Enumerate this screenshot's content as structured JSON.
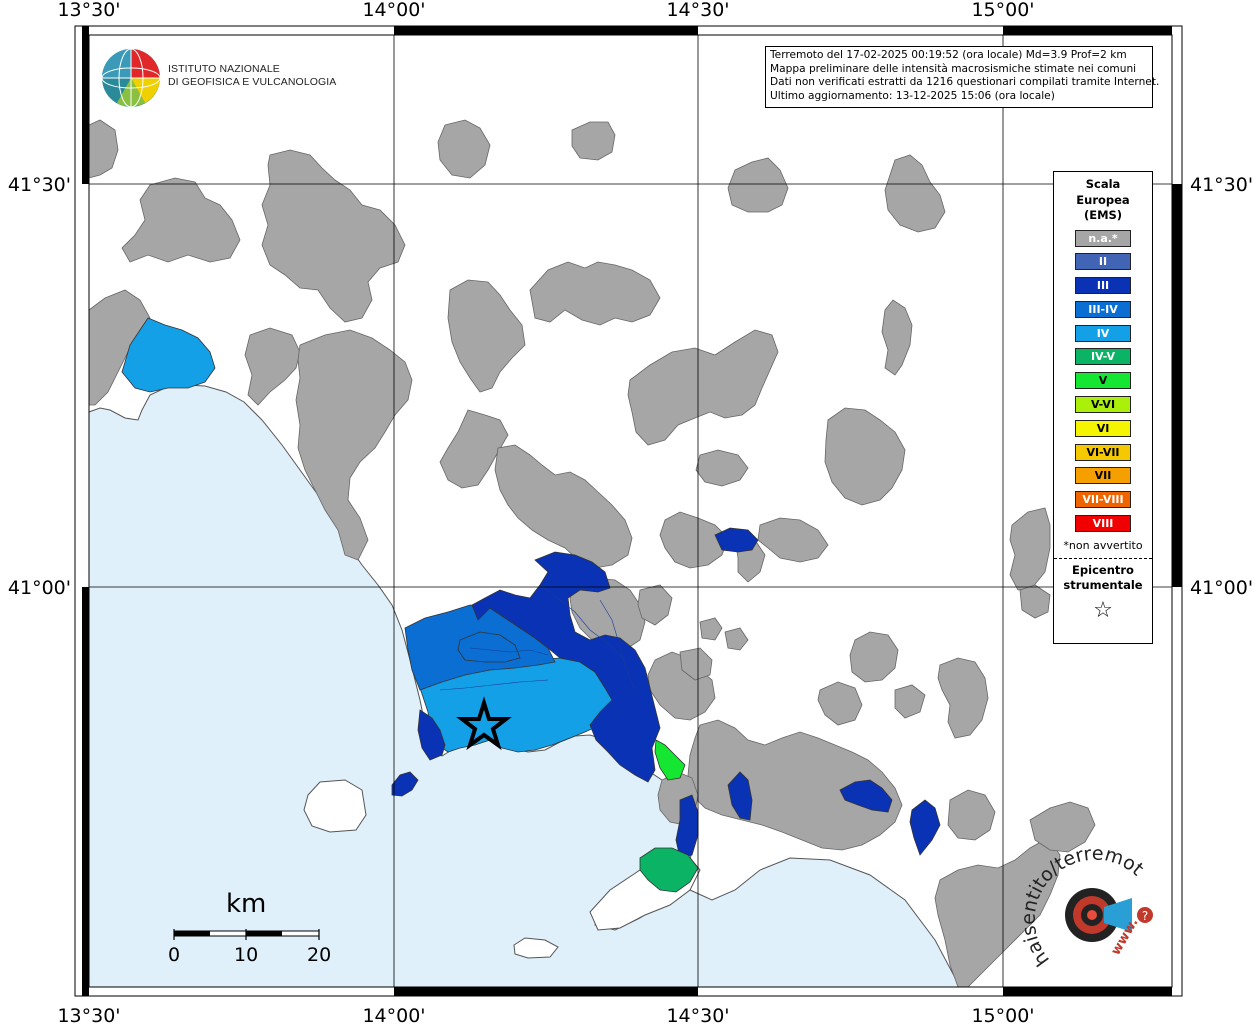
{
  "map": {
    "lon_labels": [
      "13°30'",
      "14°00'",
      "14°30'",
      "15°00'"
    ],
    "lat_labels": [
      "41°30'",
      "41°00'"
    ],
    "sea_color": "#dff0fb",
    "land_na_color": "#a6a6a6"
  },
  "institute": {
    "line1": "ISTITUTO NAZIONALE",
    "line2": "DI GEOFISICA E VULCANOLOGIA"
  },
  "info": {
    "line1": "Terremoto del 17-02-2025 00:19:52 (ora locale) Md=3.9 Prof=2 km",
    "line2": "Mappa preliminare delle intensità macrosismiche stimate nei comuni",
    "line3": "Dati non verificati estratti da 1216 questionari compilati tramite Internet.",
    "line4": "Ultimo aggiornamento: 13-12-2025 15:06 (ora locale)"
  },
  "legend": {
    "title_line1": "Scala",
    "title_line2": "Europea",
    "title_line3": "(EMS)",
    "items": [
      {
        "label": "n.a.*",
        "color": "#a6a6a6"
      },
      {
        "label": "II",
        "color": "#4264b4"
      },
      {
        "label": "III",
        "color": "#0a32b4"
      },
      {
        "label": "III-IV",
        "color": "#0a6ed2"
      },
      {
        "label": "IV",
        "color": "#14a0e6"
      },
      {
        "label": "IV-V",
        "color": "#0ab464"
      },
      {
        "label": "V",
        "color": "#14e632"
      },
      {
        "label": "V-VI",
        "color": "#aaf00a"
      },
      {
        "label": "VI",
        "color": "#f5f500"
      },
      {
        "label": "VI-VII",
        "color": "#f5c800"
      },
      {
        "label": "VII",
        "color": "#f5a000"
      },
      {
        "label": "VII-VIII",
        "color": "#f06400"
      },
      {
        "label": "VIII",
        "color": "#f00000"
      }
    ],
    "note": "*non avvertito",
    "epicenter_line1": "Epicentro",
    "epicenter_line2": "strumentale",
    "star": "☆"
  },
  "scalebar": {
    "unit": "km",
    "labels": [
      "0",
      "10",
      "20"
    ]
  },
  "watermark": {
    "text_arc": "haisentito/terremoto.it",
    "url": "www.",
    "question": "?"
  }
}
